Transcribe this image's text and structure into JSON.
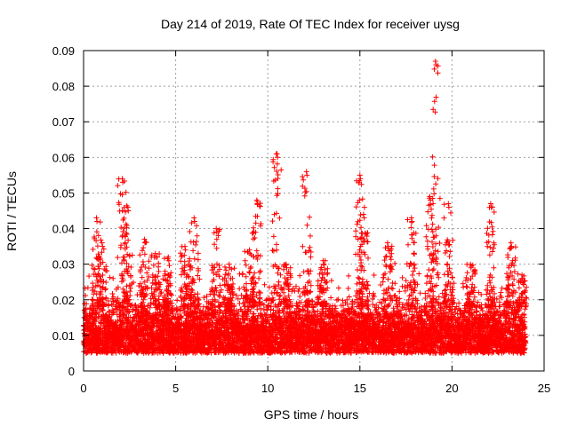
{
  "chart_data": {
    "type": "scatter",
    "title": "Day 214 of 2019, Rate Of TEC Index for receiver uysg",
    "xlabel": "GPS time / hours",
    "ylabel": "ROTI / TECUs",
    "xlim": [
      0,
      25
    ],
    "ylim": [
      0,
      0.09
    ],
    "x_ticks": [
      0,
      5,
      10,
      15,
      20,
      25
    ],
    "x_tick_labels": [
      "0",
      "5",
      "10",
      "15",
      "20",
      "25"
    ],
    "y_ticks": [
      0,
      0.01,
      0.02,
      0.03,
      0.04,
      0.05,
      0.06,
      0.07,
      0.08,
      0.09
    ],
    "y_tick_labels": [
      "0",
      "0.01",
      "0.02",
      "0.03",
      "0.04",
      "0.05",
      "0.06",
      "0.07",
      "0.08",
      "0.09"
    ],
    "grid": true,
    "marker": "+",
    "series_color": "#ff0000",
    "baseline": {
      "x_range": [
        0,
        24
      ],
      "typical_min": 0.005,
      "typical_max": 0.02,
      "points_per_hour": 320
    },
    "peaks": [
      {
        "x": 0.7,
        "y": 0.043
      },
      {
        "x": 1.0,
        "y": 0.036
      },
      {
        "x": 2.1,
        "y": 0.054
      },
      {
        "x": 2.4,
        "y": 0.046
      },
      {
        "x": 3.3,
        "y": 0.037
      },
      {
        "x": 3.9,
        "y": 0.033
      },
      {
        "x": 4.6,
        "y": 0.032
      },
      {
        "x": 5.5,
        "y": 0.035
      },
      {
        "x": 6.0,
        "y": 0.043
      },
      {
        "x": 7.2,
        "y": 0.04
      },
      {
        "x": 7.9,
        "y": 0.03
      },
      {
        "x": 9.0,
        "y": 0.034
      },
      {
        "x": 9.4,
        "y": 0.048
      },
      {
        "x": 10.5,
        "y": 0.061
      },
      {
        "x": 11.0,
        "y": 0.03
      },
      {
        "x": 12.1,
        "y": 0.056
      },
      {
        "x": 13.0,
        "y": 0.031
      },
      {
        "x": 15.0,
        "y": 0.055
      },
      {
        "x": 15.2,
        "y": 0.044
      },
      {
        "x": 16.5,
        "y": 0.036
      },
      {
        "x": 17.8,
        "y": 0.043
      },
      {
        "x": 18.8,
        "y": 0.049
      },
      {
        "x": 19.1,
        "y": 0.087
      },
      {
        "x": 19.8,
        "y": 0.047
      },
      {
        "x": 21.0,
        "y": 0.03
      },
      {
        "x": 22.1,
        "y": 0.047
      },
      {
        "x": 23.2,
        "y": 0.036
      },
      {
        "x": 23.8,
        "y": 0.027
      }
    ]
  }
}
